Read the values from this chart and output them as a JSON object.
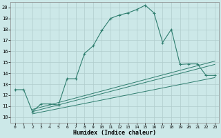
{
  "title": "",
  "xlabel": "Humidex (Indice chaleur)",
  "ylabel": "",
  "bg_color": "#cce8e8",
  "grid_color": "#b0cccc",
  "line_color": "#2e7d6e",
  "xlim": [
    -0.5,
    23.5
  ],
  "ylim": [
    9.5,
    20.5
  ],
  "xticks": [
    0,
    1,
    2,
    3,
    4,
    5,
    6,
    7,
    8,
    9,
    10,
    11,
    12,
    13,
    14,
    15,
    16,
    17,
    18,
    19,
    20,
    21,
    22,
    23
  ],
  "yticks": [
    10,
    11,
    12,
    13,
    14,
    15,
    16,
    17,
    18,
    19,
    20
  ],
  "line1_x": [
    0,
    1,
    2,
    3,
    4,
    5,
    6,
    7,
    8,
    9,
    10,
    11,
    12,
    13,
    14,
    15,
    16,
    17,
    18,
    19,
    20,
    21,
    22,
    23
  ],
  "line1_y": [
    12.5,
    12.5,
    10.5,
    11.2,
    11.2,
    11.1,
    13.5,
    13.5,
    15.8,
    16.5,
    17.9,
    19.0,
    19.3,
    19.5,
    19.8,
    20.2,
    19.5,
    16.8,
    18.0,
    14.8,
    14.85,
    14.85,
    13.8,
    13.8
  ],
  "line2_x": [
    2,
    23
  ],
  "line2_y": [
    10.5,
    14.8
  ],
  "line3_x": [
    2,
    23
  ],
  "line3_y": [
    10.7,
    15.1
  ],
  "line4_x": [
    2,
    23
  ],
  "line4_y": [
    10.3,
    13.6
  ]
}
